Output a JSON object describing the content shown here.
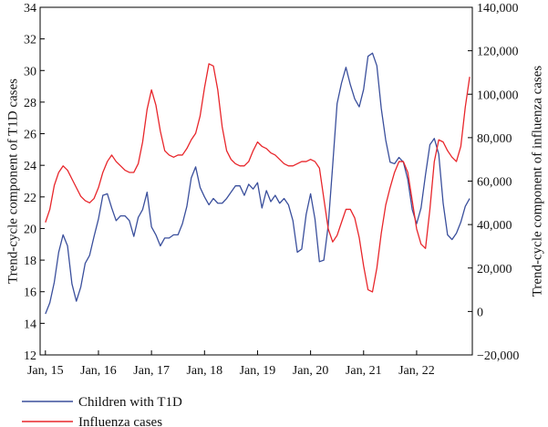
{
  "chart_data": {
    "type": "line",
    "title": "",
    "xlabel": "",
    "x": [
      2015.0,
      2015.083,
      2015.167,
      2015.25,
      2015.333,
      2015.417,
      2015.5,
      2015.583,
      2015.667,
      2015.75,
      2015.833,
      2015.917,
      2016.0,
      2016.083,
      2016.167,
      2016.25,
      2016.333,
      2016.417,
      2016.5,
      2016.583,
      2016.667,
      2016.75,
      2016.833,
      2016.917,
      2017.0,
      2017.083,
      2017.167,
      2017.25,
      2017.333,
      2017.417,
      2017.5,
      2017.583,
      2017.667,
      2017.75,
      2017.833,
      2017.917,
      2018.0,
      2018.083,
      2018.167,
      2018.25,
      2018.333,
      2018.417,
      2018.5,
      2018.583,
      2018.667,
      2018.75,
      2018.833,
      2018.917,
      2019.0,
      2019.083,
      2019.167,
      2019.25,
      2019.333,
      2019.417,
      2019.5,
      2019.583,
      2019.667,
      2019.75,
      2019.833,
      2019.917,
      2020.0,
      2020.083,
      2020.167,
      2020.25,
      2020.333,
      2020.417,
      2020.5,
      2020.583,
      2020.667,
      2020.75,
      2020.833,
      2020.917,
      2021.0,
      2021.083,
      2021.167,
      2021.25,
      2021.333,
      2021.417,
      2021.5,
      2021.583,
      2021.667,
      2021.75,
      2021.833,
      2021.917,
      2022.0,
      2022.083,
      2022.167,
      2022.25,
      2022.333,
      2022.417,
      2022.5,
      2022.583,
      2022.667,
      2022.75,
      2022.833,
      2022.917,
      2023.0
    ],
    "xlim": [
      2014.9,
      2023.05
    ],
    "xticks": [
      {
        "value": 2015,
        "label": "Jan, 15"
      },
      {
        "value": 2016,
        "label": "Jan, 16"
      },
      {
        "value": 2017,
        "label": "Jan, 17"
      },
      {
        "value": 2018,
        "label": "Jan, 18"
      },
      {
        "value": 2019,
        "label": "Jan, 19"
      },
      {
        "value": 2020,
        "label": "Jan, 20"
      },
      {
        "value": 2021,
        "label": "Jan, 21"
      },
      {
        "value": 2022,
        "label": "Jan, 22"
      }
    ],
    "y_left": {
      "label": "Trend-cycle component of T1D cases",
      "lim": [
        12,
        34
      ],
      "ticks": [
        12,
        14,
        16,
        18,
        20,
        22,
        24,
        26,
        28,
        30,
        32,
        34
      ],
      "tick_labels": [
        "12",
        "14",
        "16",
        "18",
        "20",
        "22",
        "24",
        "26",
        "28",
        "30",
        "32",
        "34"
      ]
    },
    "y_right": {
      "label": "Trend-cycle component of influenza cases",
      "lim": [
        -20000,
        140000
      ],
      "ticks": [
        -20000,
        0,
        20000,
        40000,
        60000,
        80000,
        100000,
        120000,
        140000
      ],
      "tick_labels": [
        "−20,000",
        "0",
        "20,000",
        "40,000",
        "60,000",
        "80,000",
        "100,000",
        "120,000",
        "140,000"
      ]
    },
    "series": [
      {
        "name": "Children with T1D",
        "axis": "left",
        "color": "#3a4f9c",
        "values": [
          14.6,
          15.3,
          16.6,
          18.5,
          19.6,
          18.9,
          16.5,
          15.4,
          16.3,
          17.8,
          18.3,
          19.5,
          20.6,
          22.1,
          22.2,
          21.3,
          20.5,
          20.8,
          20.8,
          20.5,
          19.5,
          20.7,
          21.2,
          22.3,
          20.1,
          19.6,
          18.9,
          19.4,
          19.4,
          19.6,
          19.6,
          20.3,
          21.4,
          23.2,
          23.9,
          22.6,
          22.0,
          21.5,
          21.9,
          21.6,
          21.6,
          21.9,
          22.3,
          22.7,
          22.7,
          22.1,
          22.8,
          22.5,
          22.9,
          21.3,
          22.4,
          21.7,
          22.1,
          21.6,
          21.9,
          21.5,
          20.5,
          18.5,
          18.7,
          20.9,
          22.2,
          20.6,
          17.9,
          18.0,
          20.2,
          24.0,
          27.9,
          29.2,
          30.2,
          29.1,
          28.2,
          27.7,
          28.8,
          30.9,
          31.1,
          30.3,
          27.6,
          25.6,
          24.2,
          24.1,
          24.5,
          24.2,
          23.1,
          21.2,
          20.3,
          21.3,
          23.4,
          25.3,
          25.7,
          24.7,
          21.6,
          19.6,
          19.3,
          19.7,
          20.4,
          21.4,
          21.9
        ]
      },
      {
        "name": "Influenza cases",
        "axis": "right",
        "color": "#e8262b",
        "values": [
          41000,
          47000,
          58000,
          64000,
          67000,
          65000,
          61000,
          57000,
          53000,
          51000,
          50000,
          52000,
          57000,
          64000,
          69000,
          72000,
          69000,
          67000,
          65000,
          64000,
          64000,
          68000,
          78000,
          93000,
          102000,
          95000,
          83000,
          74000,
          72000,
          71000,
          72000,
          72000,
          75000,
          79000,
          82000,
          90000,
          103000,
          114000,
          113000,
          102000,
          85000,
          74000,
          70000,
          68000,
          67000,
          67000,
          69000,
          74000,
          78000,
          76000,
          75000,
          73000,
          72000,
          70000,
          68000,
          67000,
          67000,
          68000,
          69000,
          69000,
          70000,
          69000,
          66000,
          52000,
          38000,
          32000,
          35000,
          41000,
          47000,
          47000,
          43000,
          34000,
          21000,
          10000,
          9000,
          20000,
          36000,
          49000,
          57000,
          64000,
          69000,
          69000,
          64000,
          51000,
          38000,
          31000,
          29000,
          47000,
          69000,
          79000,
          78000,
          74000,
          71000,
          69000,
          76000,
          94000,
          108000
        ]
      }
    ],
    "legend": {
      "position": "bottom-left",
      "entries": [
        {
          "label": "Children with T1D",
          "color": "#3a4f9c"
        },
        {
          "label": "Influenza cases",
          "color": "#e8262b"
        }
      ]
    },
    "grid": false
  }
}
